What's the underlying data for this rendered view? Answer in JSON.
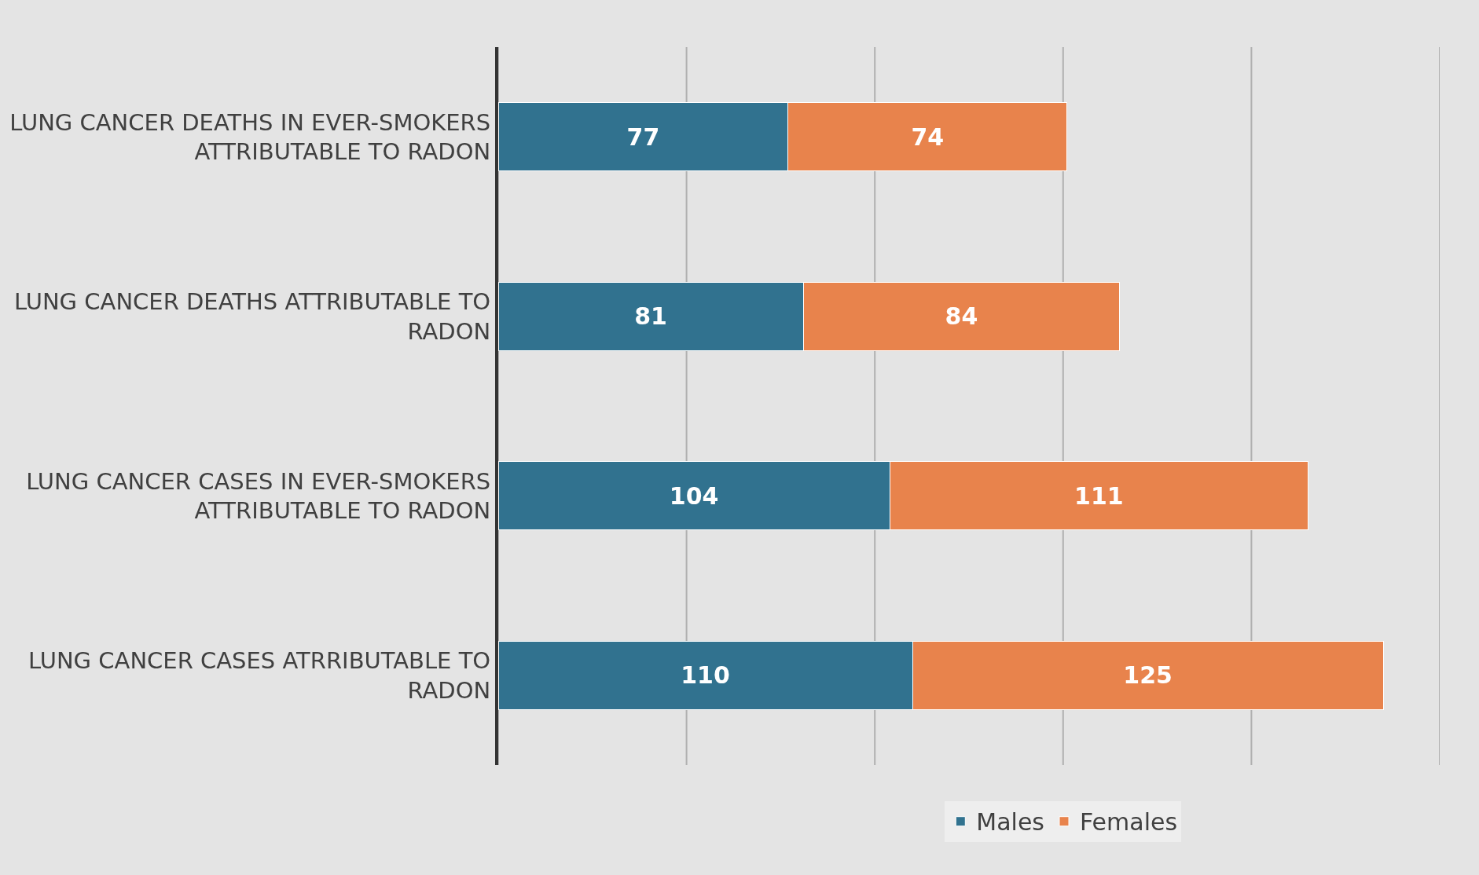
{
  "chart_data": {
    "type": "bar",
    "orientation": "horizontal",
    "stacked": true,
    "categories": [
      "LUNG CANCER DEATHS IN EVER-SMOKERS ATTRIBUTABLE TO RADON",
      "LUNG CANCER DEATHS ATTRIBUTABLE TO RADON",
      "LUNG CANCER CASES IN EVER-SMOKERS ATTRIBUTABLE TO RADON",
      "LUNG CANCER CASES ATRRIBUTABLE TO RADON"
    ],
    "series": [
      {
        "name": "Males",
        "color": "#31728f",
        "values": [
          77,
          81,
          104,
          110
        ]
      },
      {
        "name": "Females",
        "color": "#e8834c",
        "values": [
          74,
          84,
          111,
          125
        ]
      }
    ],
    "xlim": [
      0,
      250
    ],
    "xticks": [
      {
        "value": 0,
        "label": null
      },
      {
        "value": 50,
        "label": null
      },
      {
        "value": 100,
        "label": null
      },
      {
        "value": 150,
        "label": null
      },
      {
        "value": 200,
        "label": null
      },
      {
        "value": 250,
        "label": null
      }
    ],
    "tick_labels": "y",
    "grid": "x",
    "legend": "bottom",
    "data_labels": true
  }
}
